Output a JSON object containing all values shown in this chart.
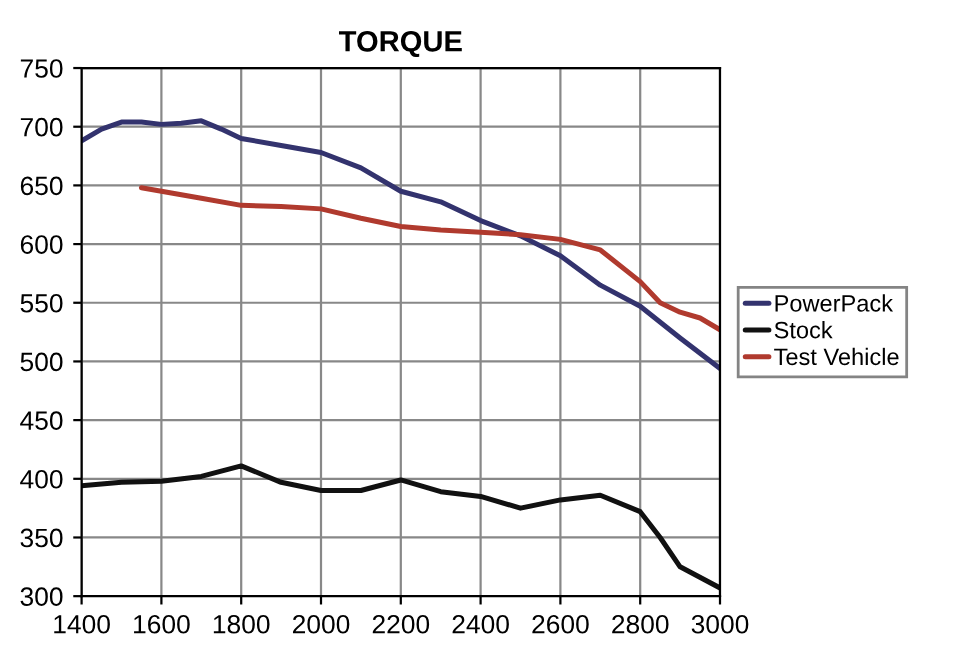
{
  "chart_data": {
    "type": "line",
    "title": "TORQUE",
    "xlim": [
      1400,
      3000
    ],
    "xticks": [
      1400,
      1600,
      1800,
      2000,
      2200,
      2400,
      2600,
      2800,
      3000
    ],
    "ylim": [
      300,
      750
    ],
    "yticks": [
      300,
      350,
      400,
      450,
      500,
      550,
      600,
      650,
      700,
      750
    ],
    "grid": true,
    "legend": "right",
    "series": [
      {
        "name": "PowerPack",
        "color": "#33336e",
        "x": [
          1400,
          1450,
          1500,
          1550,
          1600,
          1650,
          1700,
          1750,
          1800,
          1900,
          2000,
          2100,
          2200,
          2300,
          2400,
          2500,
          2600,
          2700,
          2800,
          2900,
          3000
        ],
        "values": [
          688,
          698,
          704,
          704,
          702,
          703,
          705,
          698,
          690,
          684,
          678,
          665,
          645,
          636,
          620,
          607,
          590,
          565,
          547,
          520,
          494
        ]
      },
      {
        "name": "Stock",
        "color": "#111111",
        "x": [
          1400,
          1500,
          1600,
          1700,
          1800,
          1900,
          2000,
          2100,
          2200,
          2300,
          2400,
          2500,
          2600,
          2700,
          2800,
          2850,
          2900,
          3000
        ],
        "values": [
          394,
          397,
          398,
          402,
          411,
          397,
          390,
          390,
          399,
          389,
          385,
          375,
          382,
          386,
          372,
          350,
          325,
          307
        ]
      },
      {
        "name": "Test Vehicle",
        "color": "#b03a2e",
        "x": [
          1550,
          1600,
          1700,
          1800,
          1900,
          2000,
          2100,
          2200,
          2300,
          2400,
          2500,
          2600,
          2700,
          2800,
          2850,
          2900,
          2950,
          3000
        ],
        "values": [
          648,
          645,
          639,
          633,
          632,
          630,
          622,
          615,
          612,
          610,
          608,
          604,
          595,
          568,
          550,
          542,
          537,
          527
        ]
      }
    ]
  }
}
